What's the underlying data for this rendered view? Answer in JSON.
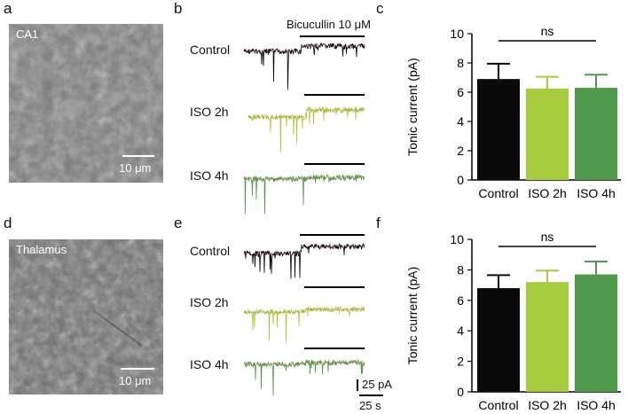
{
  "panels": {
    "a": "a",
    "b": "b",
    "c": "c",
    "d": "d",
    "e": "e",
    "f": "f"
  },
  "micrographs": [
    {
      "region": "CA1",
      "scale_bar": "10 μm"
    },
    {
      "region": "Thalamus",
      "scale_bar": "10 μm"
    }
  ],
  "traces": {
    "drug_label": "Bicucullin 10 μM",
    "rows_top": [
      "Control",
      "ISO 2h",
      "ISO 4h"
    ],
    "rows_bottom": [
      "Control",
      "ISO 2h",
      "ISO 4h"
    ],
    "scale_current": "25 pA",
    "scale_time": "25 s",
    "colors": {
      "Control": "#000000",
      "ISO 2h": "#a8c83c",
      "ISO 4h": "#4e9a4a",
      "baseline": "#e05a5a"
    }
  },
  "chart_data": [
    {
      "type": "bar",
      "panel": "c",
      "categories": [
        "Control",
        "ISO 2h",
        "ISO 4h"
      ],
      "values": [
        6.9,
        6.25,
        6.3
      ],
      "errors": [
        1.05,
        0.8,
        0.9
      ],
      "colors": [
        "#0a0a0a",
        "#a6cc3e",
        "#4e9a4a"
      ],
      "ylabel": "Tonic current (pA)",
      "xlabel": "",
      "ylim": [
        0,
        10
      ],
      "yticks": [
        0,
        2,
        4,
        6,
        8,
        10
      ],
      "significance": "ns"
    },
    {
      "type": "bar",
      "panel": "f",
      "categories": [
        "Control",
        "ISO 2h",
        "ISO 4h"
      ],
      "values": [
        6.8,
        7.2,
        7.7
      ],
      "errors": [
        0.85,
        0.75,
        0.85
      ],
      "colors": [
        "#0a0a0a",
        "#a6cc3e",
        "#4e9a4a"
      ],
      "ylabel": "Tonic current (pA)",
      "xlabel": "",
      "ylim": [
        0,
        10
      ],
      "yticks": [
        0,
        2,
        4,
        6,
        8,
        10
      ],
      "significance": "ns"
    }
  ]
}
